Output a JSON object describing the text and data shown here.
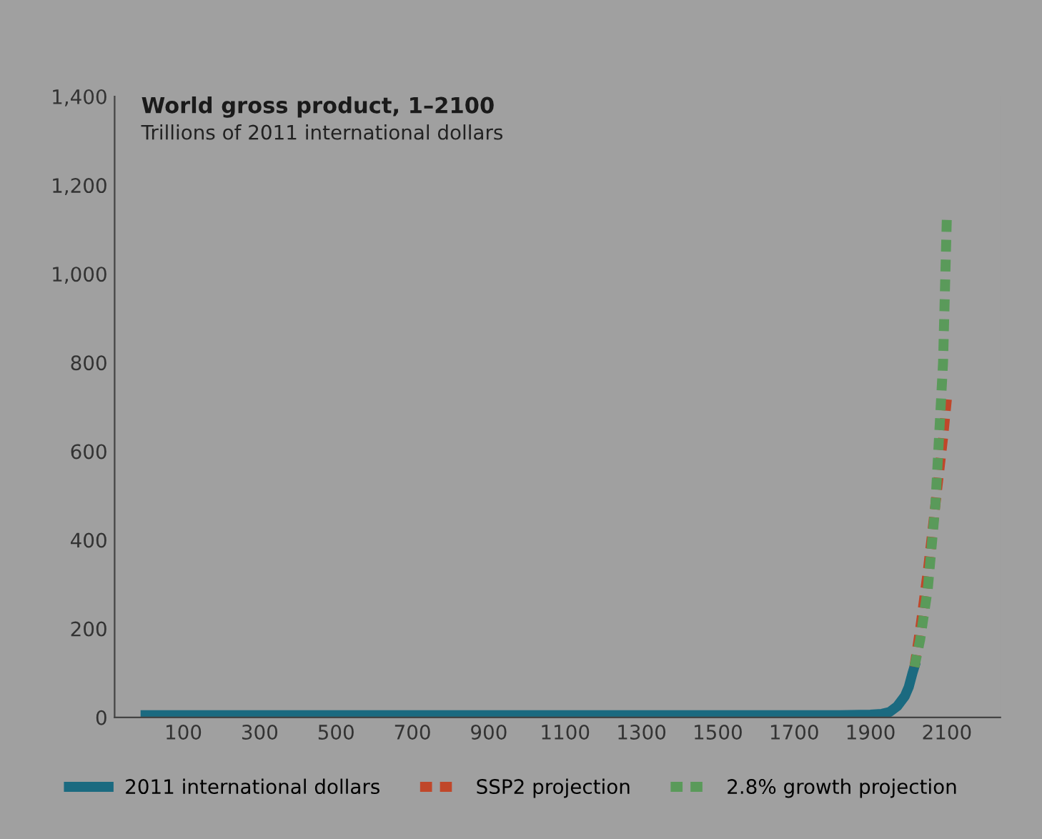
{
  "chart_data": {
    "type": "line",
    "title": "World gross product, 1–2100",
    "subtitle": "Trillions of 2011 international dollars",
    "xlim": [
      -80,
      2240
    ],
    "xticks": [
      100,
      300,
      500,
      700,
      900,
      1100,
      1300,
      1500,
      1700,
      1900,
      2100
    ],
    "ylim": [
      0,
      1400
    ],
    "yticks": [
      {
        "value": 0,
        "label": "0"
      },
      {
        "value": 200,
        "label": "200"
      },
      {
        "value": 400,
        "label": "400"
      },
      {
        "value": 600,
        "label": "600"
      },
      {
        "value": 800,
        "label": "800"
      },
      {
        "value": 1000,
        "label": "1,000"
      },
      {
        "value": 1200,
        "label": "1,200"
      },
      {
        "value": 1400,
        "label": "1,400"
      }
    ],
    "grid": false,
    "legend": "bottom",
    "series": [
      {
        "name": "2011 international dollars",
        "color": "#1b6a80",
        "line_style": "solid",
        "x": [
          1,
          500,
          1000,
          1500,
          1700,
          1820,
          1900,
          1930,
          1950,
          1970,
          1990,
          2000,
          2010,
          2015
        ],
        "values": [
          5,
          5,
          5,
          5,
          5,
          5,
          6,
          8,
          12,
          25,
          48,
          68,
          100,
          114
        ]
      },
      {
        "name": "SSP2 projection",
        "color": "#c0472a",
        "line_style": "dashed",
        "x": [
          2015,
          2030,
          2050,
          2070,
          2090,
          2100
        ],
        "values": [
          114,
          200,
          330,
          480,
          630,
          717
        ]
      },
      {
        "name": "2.8% growth projection",
        "color": "#5a9a5a",
        "line_style": "dashed",
        "x": [
          2015,
          2030,
          2050,
          2070,
          2090,
          2100
        ],
        "values": [
          114,
          175,
          290,
          480,
          800,
          1130
        ]
      }
    ]
  }
}
